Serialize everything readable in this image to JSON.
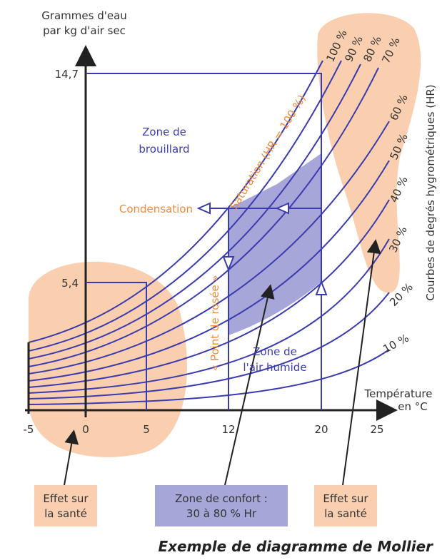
{
  "colors": {
    "blue": "#3b3bb0",
    "orange_zone": "#f9cfb0",
    "orange_text": "#f08a3c",
    "comfort_fill": "#a7a6d8",
    "axis": "#222222"
  },
  "y_axis": {
    "title_line1": "Grammes d'eau",
    "title_line2": "par kg d'air sec",
    "ticks": [
      "14,7",
      "5,4"
    ]
  },
  "x_axis": {
    "title_line1": "Température",
    "title_line2": "en °C",
    "ticks": [
      "-5",
      "0",
      "5",
      "12",
      "20",
      "25"
    ]
  },
  "right_axis_title": "Courbes de degrés hygrométriques (HR)",
  "hr_labels": [
    "100 %",
    "90 %",
    "80 %",
    "70 %",
    "60 %",
    "50 %",
    "40 %",
    "30 %",
    "20 %",
    "10 %"
  ],
  "annotations": {
    "fog_zone_line1": "Zone de",
    "fog_zone_line2": "brouillard",
    "saturation": "Saturation (HR = 100 %)",
    "condensation": "Condensation",
    "dew_point": "« Point de rosée »",
    "humid_zone_line1": "Zone de",
    "humid_zone_line2": "l'air humide"
  },
  "boxes": {
    "health_left_line1": "Effet sur",
    "health_left_line2": "la santé",
    "comfort_line1": "Zone de confort :",
    "comfort_line2": "30 à 80 % Hr",
    "health_right_line1": "Effet sur",
    "health_right_line2": "la santé"
  },
  "caption": "Exemple de diagramme de Mollier"
}
